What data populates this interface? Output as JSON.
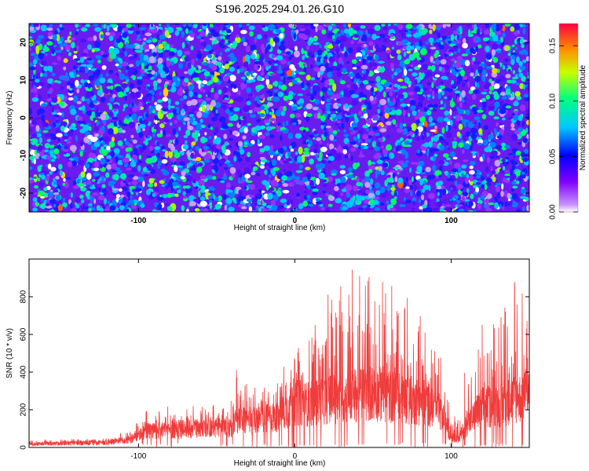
{
  "chart_data": [
    {
      "type": "heatmap",
      "title": "S196.2025.294.01.26.G10",
      "xlabel": "Height of straight line (km)",
      "ylabel": "Frequency (Hz)",
      "xlim": [
        -170,
        150
      ],
      "ylim": [
        -25,
        25
      ],
      "x_ticks": [
        -100,
        0,
        100
      ],
      "y_ticks": [
        -20,
        -10,
        0,
        10,
        20
      ],
      "colorbar": {
        "label": "Normalized spectral amplitude",
        "range": [
          0.0,
          0.17
        ],
        "ticks": [
          0.0,
          0.05,
          0.1,
          0.15
        ],
        "tick_labels": [
          "0.00",
          "0.05",
          "0.10",
          "0.15"
        ],
        "colors": [
          "#ffffff",
          "#8000ff",
          "#0000ff",
          "#00c8ff",
          "#00ff80",
          "#c8ff00",
          "#ff8000",
          "#ff0040"
        ]
      },
      "description": "Dense speckled noise field, mostly low amplitude (0.02-0.06), with sparse peaks up to ~0.12"
    },
    {
      "type": "line",
      "xlabel": "Height of straight line (km)",
      "ylabel": "SNR (10 * v/v)",
      "xlim": [
        -170,
        150
      ],
      "ylim": [
        0,
        1000
      ],
      "x_ticks": [
        -100,
        0,
        100
      ],
      "y_ticks": [
        0,
        200,
        400,
        600,
        800
      ],
      "color": "#f03c3c",
      "envelope": {
        "x": [
          -170,
          -150,
          -120,
          -105,
          -100,
          -95,
          -80,
          -60,
          -40,
          -38,
          -20,
          -10,
          0,
          10,
          20,
          35,
          50,
          70,
          85,
          95,
          100,
          105,
          110,
          120,
          130,
          140,
          150
        ],
        "y_base": [
          20,
          25,
          30,
          45,
          70,
          100,
          110,
          120,
          130,
          160,
          170,
          200,
          280,
          270,
          300,
          320,
          340,
          300,
          280,
          180,
          70,
          60,
          140,
          250,
          260,
          300,
          320
        ],
        "y_peak": [
          45,
          45,
          50,
          100,
          140,
          200,
          230,
          220,
          250,
          430,
          320,
          380,
          560,
          610,
          800,
          990,
          900,
          850,
          650,
          450,
          200,
          170,
          500,
          700,
          650,
          900,
          900
        ]
      }
    }
  ]
}
